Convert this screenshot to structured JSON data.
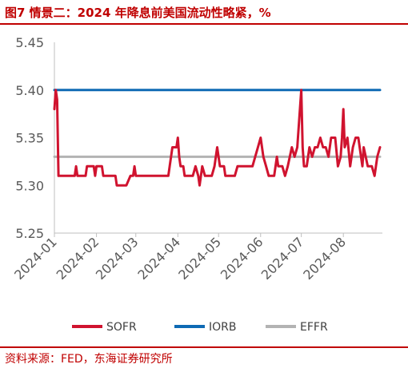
{
  "header": {
    "title": "图7  情景二：2024 年降息前美国流动性略紧，%"
  },
  "footer": {
    "source": "资料来源：FED，东海证券研究所"
  },
  "chart_data": {
    "type": "line",
    "title": "",
    "xlabel": "",
    "ylabel": "",
    "ylim": [
      5.25,
      5.45
    ],
    "yticks": [
      "5.25",
      "5.30",
      "5.35",
      "5.40",
      "5.45"
    ],
    "xticks": [
      "2024-01",
      "2024-02",
      "2024-03",
      "2024-04",
      "2024-05",
      "2024-06",
      "2024-07",
      "2024-08"
    ],
    "xlim": [
      "2024-01-01",
      "2024-08-28"
    ],
    "grid": false,
    "legend_position": "bottom",
    "series": [
      {
        "name": "SOFR",
        "color": "#d0132f",
        "points": [
          [
            "2024-01-01",
            5.38
          ],
          [
            "2024-01-02",
            5.4
          ],
          [
            "2024-01-03",
            5.39
          ],
          [
            "2024-01-04",
            5.31
          ],
          [
            "2024-01-16",
            5.31
          ],
          [
            "2024-01-17",
            5.32
          ],
          [
            "2024-01-18",
            5.31
          ],
          [
            "2024-01-24",
            5.31
          ],
          [
            "2024-01-25",
            5.32
          ],
          [
            "2024-01-30",
            5.32
          ],
          [
            "2024-01-31",
            5.31
          ],
          [
            "2024-02-01",
            5.32
          ],
          [
            "2024-02-05",
            5.32
          ],
          [
            "2024-02-06",
            5.31
          ],
          [
            "2024-02-15",
            5.31
          ],
          [
            "2024-02-16",
            5.3
          ],
          [
            "2024-02-23",
            5.3
          ],
          [
            "2024-02-26",
            5.31
          ],
          [
            "2024-02-28",
            5.31
          ],
          [
            "2024-02-29",
            5.32
          ],
          [
            "2024-03-01",
            5.31
          ],
          [
            "2024-03-25",
            5.31
          ],
          [
            "2024-03-26",
            5.32
          ],
          [
            "2024-03-28",
            5.34
          ],
          [
            "2024-03-31",
            5.34
          ],
          [
            "2024-04-01",
            5.35
          ],
          [
            "2024-04-02",
            5.33
          ],
          [
            "2024-04-03",
            5.32
          ],
          [
            "2024-04-05",
            5.32
          ],
          [
            "2024-04-06",
            5.31
          ],
          [
            "2024-04-12",
            5.31
          ],
          [
            "2024-04-14",
            5.32
          ],
          [
            "2024-04-16",
            5.31
          ],
          [
            "2024-04-17",
            5.3
          ],
          [
            "2024-04-19",
            5.32
          ],
          [
            "2024-04-21",
            5.31
          ],
          [
            "2024-04-26",
            5.31
          ],
          [
            "2024-04-28",
            5.32
          ],
          [
            "2024-04-30",
            5.34
          ],
          [
            "2024-05-01",
            5.33
          ],
          [
            "2024-05-02",
            5.32
          ],
          [
            "2024-05-05",
            5.32
          ],
          [
            "2024-05-06",
            5.31
          ],
          [
            "2024-05-13",
            5.31
          ],
          [
            "2024-05-15",
            5.32
          ],
          [
            "2024-05-23",
            5.32
          ],
          [
            "2024-05-26",
            5.32
          ],
          [
            "2024-05-28",
            5.33
          ],
          [
            "2024-05-30",
            5.34
          ],
          [
            "2024-06-01",
            5.35
          ],
          [
            "2024-06-03",
            5.33
          ],
          [
            "2024-06-05",
            5.32
          ],
          [
            "2024-06-07",
            5.31
          ],
          [
            "2024-06-11",
            5.31
          ],
          [
            "2024-06-13",
            5.33
          ],
          [
            "2024-06-14",
            5.32
          ],
          [
            "2024-06-17",
            5.32
          ],
          [
            "2024-06-19",
            5.31
          ],
          [
            "2024-06-21",
            5.32
          ],
          [
            "2024-06-24",
            5.34
          ],
          [
            "2024-06-26",
            5.33
          ],
          [
            "2024-06-28",
            5.34
          ],
          [
            "2024-07-01",
            5.4
          ],
          [
            "2024-07-02",
            5.34
          ],
          [
            "2024-07-03",
            5.32
          ],
          [
            "2024-07-05",
            5.32
          ],
          [
            "2024-07-07",
            5.34
          ],
          [
            "2024-07-09",
            5.33
          ],
          [
            "2024-07-11",
            5.34
          ],
          [
            "2024-07-13",
            5.34
          ],
          [
            "2024-07-15",
            5.35
          ],
          [
            "2024-07-17",
            5.34
          ],
          [
            "2024-07-19",
            5.34
          ],
          [
            "2024-07-21",
            5.33
          ],
          [
            "2024-07-23",
            5.35
          ],
          [
            "2024-07-26",
            5.35
          ],
          [
            "2024-07-28",
            5.32
          ],
          [
            "2024-07-30",
            5.33
          ],
          [
            "2024-07-31",
            5.35
          ],
          [
            "2024-08-01",
            5.38
          ],
          [
            "2024-08-02",
            5.34
          ],
          [
            "2024-08-04",
            5.35
          ],
          [
            "2024-08-06",
            5.32
          ],
          [
            "2024-08-08",
            5.34
          ],
          [
            "2024-08-10",
            5.35
          ],
          [
            "2024-08-12",
            5.35
          ],
          [
            "2024-08-14",
            5.33
          ],
          [
            "2024-08-15",
            5.32
          ],
          [
            "2024-08-16",
            5.34
          ],
          [
            "2024-08-19",
            5.32
          ],
          [
            "2024-08-22",
            5.32
          ],
          [
            "2024-08-24",
            5.31
          ],
          [
            "2024-08-26",
            5.33
          ],
          [
            "2024-08-28",
            5.34
          ]
        ]
      },
      {
        "name": "IORB",
        "color": "#0e6ab4",
        "points": [
          [
            "2024-01-01",
            5.4
          ],
          [
            "2024-08-28",
            5.4
          ]
        ]
      },
      {
        "name": "EFFR",
        "color": "#b3b3b3",
        "points": [
          [
            "2024-01-01",
            5.33
          ],
          [
            "2024-08-28",
            5.33
          ]
        ]
      }
    ]
  }
}
